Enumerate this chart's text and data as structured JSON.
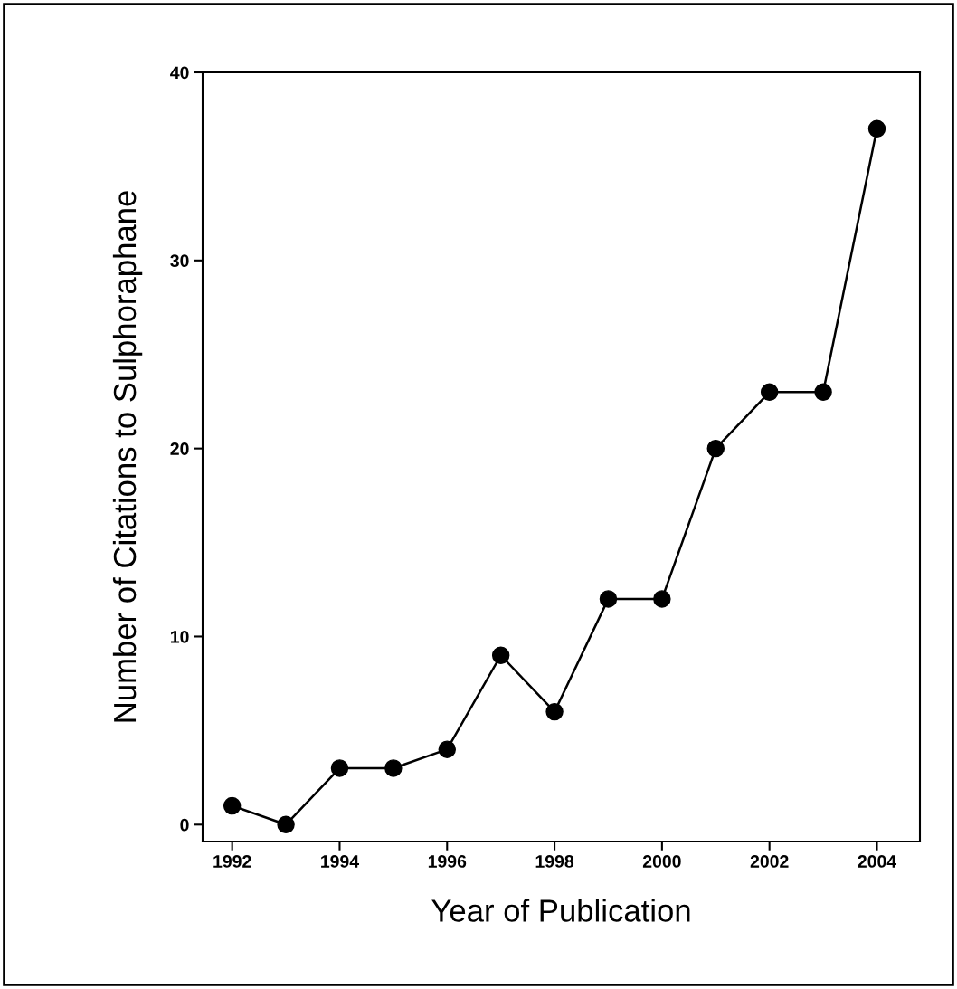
{
  "chart_data": {
    "type": "line",
    "xlabel": "Year of Publication",
    "ylabel": "Number of Citations to Sulphoraphane",
    "x": [
      1992,
      1993,
      1994,
      1995,
      1996,
      1997,
      1998,
      1999,
      2000,
      2001,
      2002,
      2003,
      2004
    ],
    "series": [
      {
        "color": "#000000",
        "values": [
          1,
          0,
          3,
          3,
          4,
          9,
          6,
          12,
          12,
          20,
          23,
          23,
          37
        ]
      }
    ],
    "xlim": [
      1991.45,
      2004.8
    ],
    "ylim": [
      -0.9,
      40
    ],
    "xticks": [
      1992,
      1994,
      1996,
      1998,
      2000,
      2002,
      2004
    ],
    "yticks": [
      0,
      10,
      20,
      30,
      40
    ],
    "marker": "circle",
    "line_style": "solid",
    "grid": false,
    "legend": false
  }
}
